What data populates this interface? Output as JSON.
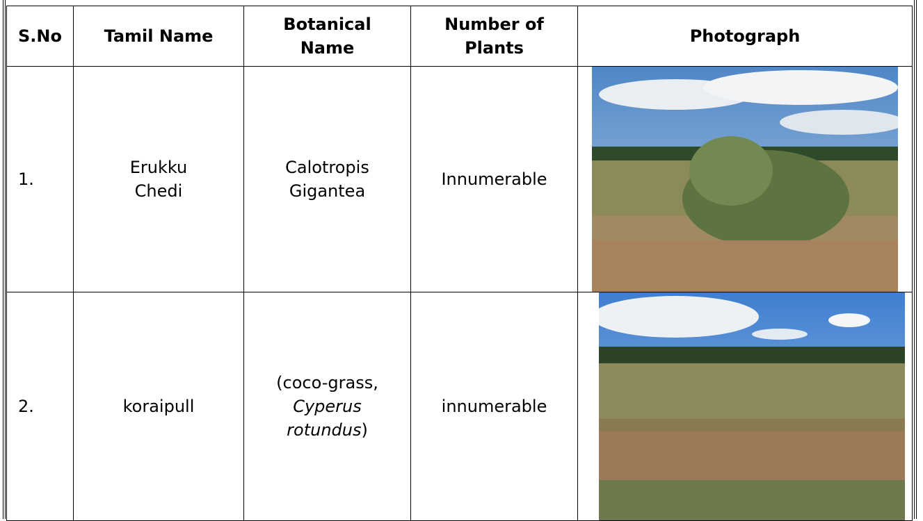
{
  "table": {
    "header": [
      "S.No",
      "Tamil Name",
      "Botanical Name",
      "Number of Plants",
      "Photograph"
    ],
    "rows": [
      {
        "sno": "1.",
        "tamil": "Erukku Chedi",
        "botanical": [
          "Calotropis Gigantea"
        ],
        "count": "Innumerable"
      },
      {
        "sno": "2.",
        "tamil": "koraipull",
        "botanical": [
          "(coco-grass, ",
          "Cyperus rotundus",
          ")"
        ],
        "count": "innumerable"
      }
    ]
  }
}
